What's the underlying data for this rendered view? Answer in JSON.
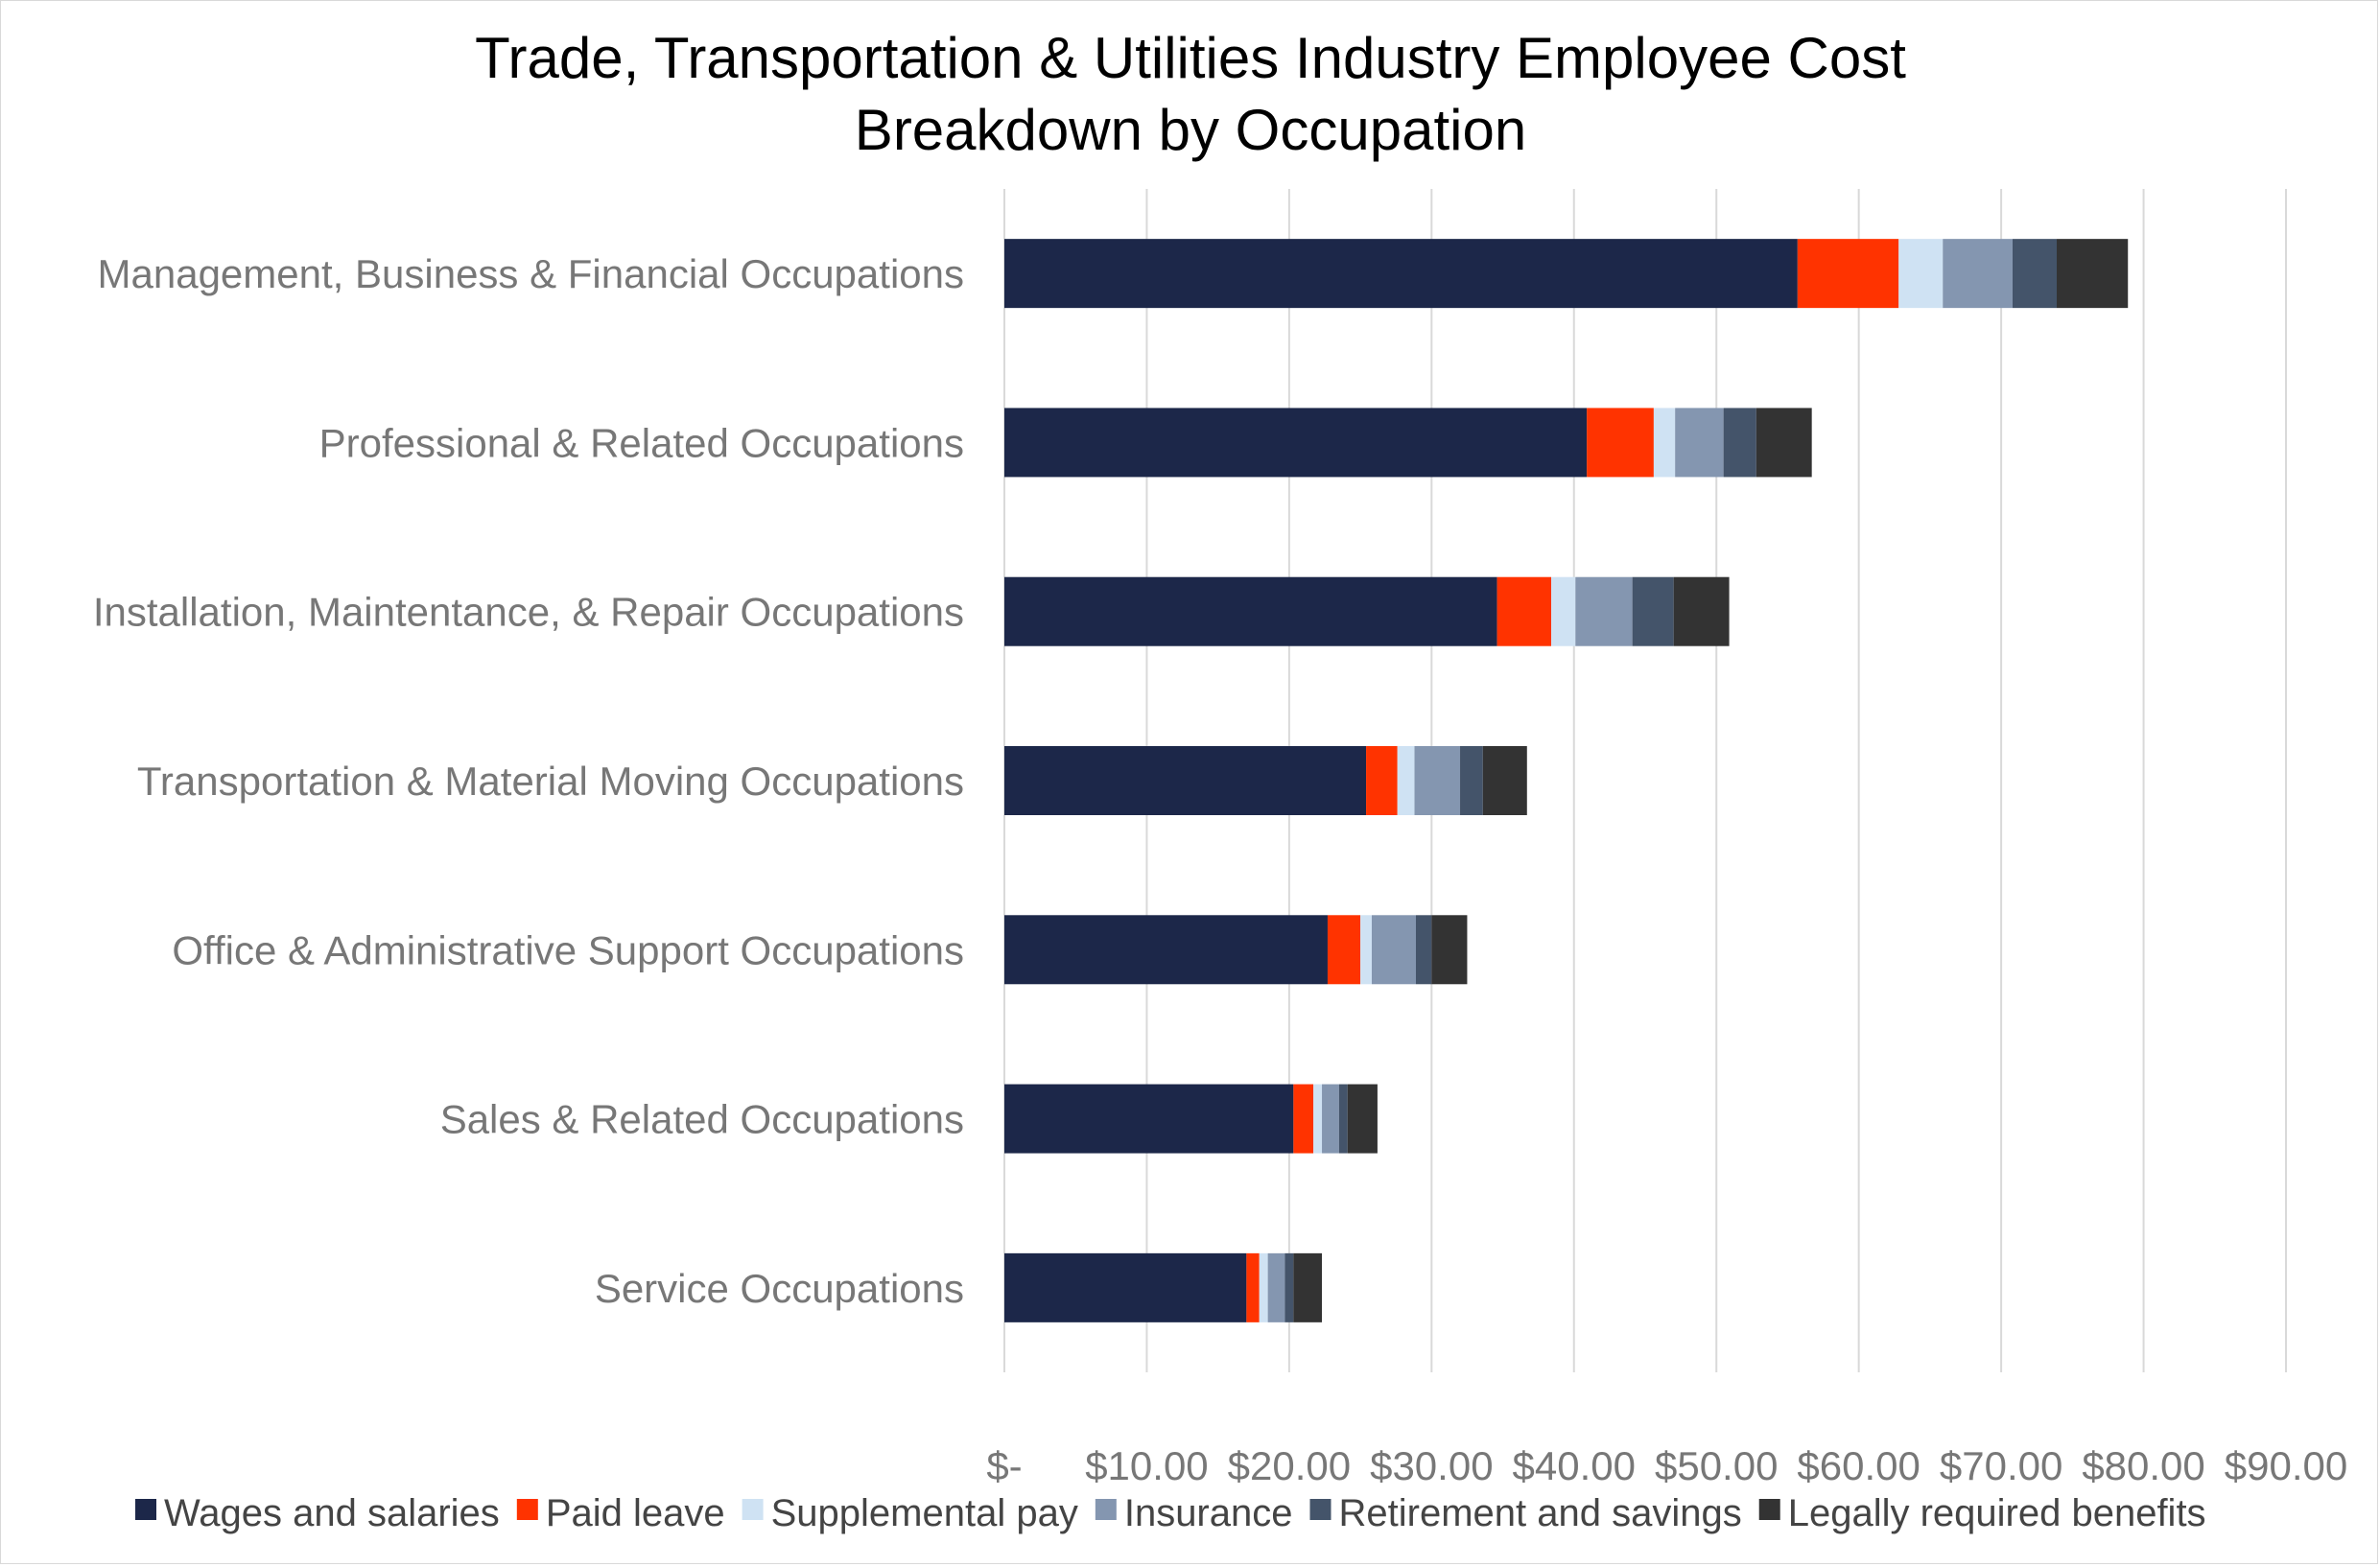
{
  "chart_data": {
    "type": "bar",
    "orientation": "horizontal",
    "stacked": true,
    "title_lines": [
      "Trade, Transportation & Utilities Industry Employee Cost",
      "Breakdown by Occupation"
    ],
    "categories": [
      "Management, Business & Financial Occupations",
      "Professional & Related Occupations",
      "Installation, Maintentance, & Repair Occupations",
      "Transportation & Material Moving Occupations",
      "Office & Administrative Support Occupations",
      "Sales & Related Occupations",
      "Service Occupations"
    ],
    "series": [
      {
        "name": "Wages and salaries",
        "color": "#1c2749",
        "values": [
          55.7,
          40.9,
          34.6,
          25.4,
          22.7,
          20.3,
          17.0
        ]
      },
      {
        "name": "Paid leave",
        "color": "#ff3300",
        "values": [
          7.1,
          4.7,
          3.8,
          2.2,
          2.3,
          1.4,
          0.9
        ]
      },
      {
        "name": "Supplemental pay",
        "color": "#cfe2f3",
        "values": [
          3.1,
          1.5,
          1.7,
          1.2,
          0.8,
          0.6,
          0.6
        ]
      },
      {
        "name": "Insurance",
        "color": "#8496b0",
        "values": [
          4.9,
          3.4,
          4.0,
          3.2,
          3.1,
          1.2,
          1.2
        ]
      },
      {
        "name": "Retirement and savings",
        "color": "#44546a",
        "values": [
          3.1,
          2.3,
          2.9,
          1.6,
          1.1,
          0.6,
          0.6
        ]
      },
      {
        "name": "Legally required benefits",
        "color": "#333333",
        "values": [
          5.0,
          3.9,
          3.9,
          3.1,
          2.5,
          2.1,
          2.0
        ]
      }
    ],
    "x_ticks": [
      "$-",
      "$10.00",
      "$20.00",
      "$30.00",
      "$40.00",
      "$50.00",
      "$60.00",
      "$70.00",
      "$80.00",
      "$90.00"
    ],
    "xlim": [
      0,
      90
    ],
    "grid": true,
    "legend_position": "bottom"
  }
}
